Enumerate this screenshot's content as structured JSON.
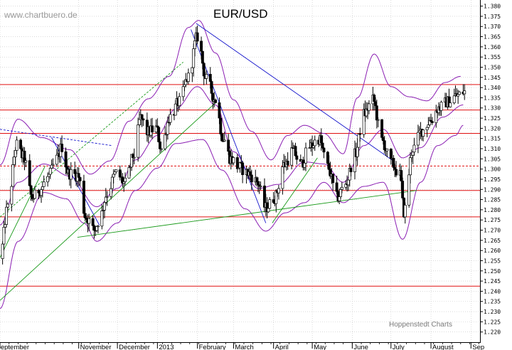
{
  "chart_data": {
    "type": "candlestick",
    "title": "EUR/USD",
    "watermark": "www.chartbuero.de",
    "credit": "Hoppenstedt Charts",
    "ylim": [
      1.215,
      1.383
    ],
    "y_ticks": [
      "1.220",
      "1.225",
      "1.230",
      "1.235",
      "1.240",
      "1.245",
      "1.250",
      "1.255",
      "1.260",
      "1.265",
      "1.270",
      "1.275",
      "1.280",
      "1.285",
      "1.290",
      "1.295",
      "1.300",
      "1.305",
      "1.310",
      "1.315",
      "1.320",
      "1.325",
      "1.330",
      "1.335",
      "1.340",
      "1.345",
      "1.350",
      "1.355",
      "1.360",
      "1.365",
      "1.370",
      "1.375",
      "1.380"
    ],
    "x_labels": [
      "September",
      "November",
      "December",
      "2013",
      "February",
      "March",
      "April",
      "May",
      "June",
      "July",
      "August",
      "Sep"
    ],
    "x_range": [
      "2012-09-01",
      "2013-09-08"
    ],
    "x_label_dates": [
      "2012-09-01",
      "2012-11-01",
      "2012-12-01",
      "2013-01-01",
      "2013-02-01",
      "2013-03-01",
      "2013-04-01",
      "2013-05-01",
      "2013-06-01",
      "2013-07-01",
      "2013-08-01",
      "2013-09-01"
    ],
    "horizontal_levels": [
      {
        "value": 1.3415,
        "style": "solid"
      },
      {
        "value": 1.329,
        "style": "solid"
      },
      {
        "value": 1.3175,
        "style": "solid"
      },
      {
        "value": 1.3015,
        "style": "dashed"
      },
      {
        "value": 1.2895,
        "style": "solid"
      },
      {
        "value": 1.2765,
        "style": "solid"
      },
      {
        "value": 1.2425,
        "style": "solid"
      }
    ],
    "trendlines": [
      {
        "color": "blue",
        "style": "solid",
        "from": [
          "2013-01-31",
          1.3715
        ],
        "to": [
          "2013-07-04",
          1.3035
        ]
      },
      {
        "color": "blue",
        "style": "solid",
        "from": [
          "2013-01-27",
          1.3685
        ],
        "to": [
          "2013-03-26",
          1.2735
        ]
      },
      {
        "color": "blue",
        "style": "solid",
        "from": [
          "2012-10-11",
          1.3155
        ],
        "to": [
          "2012-11-17",
          1.2725
        ]
      },
      {
        "color": "blue",
        "style": "dashed",
        "from": [
          "2012-09-01",
          1.3195
        ],
        "to": [
          "2012-11-27",
          1.3115
        ]
      },
      {
        "color": "green",
        "style": "solid",
        "from": [
          "2012-10-31",
          1.2665
        ],
        "to": [
          "2013-07-21",
          1.2895
        ]
      },
      {
        "color": "green",
        "style": "solid",
        "from": [
          "2012-09-01",
          1.2355
        ],
        "to": [
          "2013-02-15",
          1.3325
        ]
      },
      {
        "color": "green",
        "style": "solid",
        "from": [
          "2012-09-01",
          1.2565
        ],
        "to": [
          "2012-10-06",
          1.3015
        ]
      },
      {
        "color": "green",
        "style": "solid",
        "from": [
          "2013-03-31",
          1.2735
        ],
        "to": [
          "2013-05-05",
          1.3055
        ]
      },
      {
        "color": "green",
        "style": "dashed",
        "from": [
          "2012-09-01",
          1.2765
        ],
        "to": [
          "2013-01-21",
          1.3525
        ]
      }
    ],
    "bollinger_anchors": {
      "upper": [
        [
          "2012-09-01",
          1.302
        ],
        [
          "2012-09-15",
          1.3245
        ],
        [
          "2012-10-03",
          1.3155
        ],
        [
          "2012-10-25",
          1.3095
        ],
        [
          "2012-11-10",
          1.2975
        ],
        [
          "2012-11-25",
          1.304
        ],
        [
          "2012-12-10",
          1.3235
        ],
        [
          "2012-12-25",
          1.3345
        ],
        [
          "2013-01-10",
          1.3455
        ],
        [
          "2013-01-25",
          1.3695
        ],
        [
          "2013-02-02",
          1.373
        ],
        [
          "2013-02-15",
          1.357
        ],
        [
          "2013-03-01",
          1.334
        ],
        [
          "2013-03-15",
          1.3185
        ],
        [
          "2013-03-30",
          1.3045
        ],
        [
          "2013-04-12",
          1.3165
        ],
        [
          "2013-04-25",
          1.3215
        ],
        [
          "2013-05-10",
          1.3175
        ],
        [
          "2013-05-25",
          1.3075
        ],
        [
          "2013-06-05",
          1.335
        ],
        [
          "2013-06-18",
          1.3565
        ],
        [
          "2013-07-01",
          1.3405
        ],
        [
          "2013-07-15",
          1.3355
        ],
        [
          "2013-07-29",
          1.3335
        ],
        [
          "2013-08-12",
          1.3425
        ],
        [
          "2013-08-24",
          1.3455
        ]
      ],
      "lower": [
        [
          "2012-09-01",
          1.2315
        ],
        [
          "2012-09-15",
          1.2645
        ],
        [
          "2012-10-05",
          1.2885
        ],
        [
          "2012-10-22",
          1.2855
        ],
        [
          "2012-11-05",
          1.2735
        ],
        [
          "2012-11-15",
          1.2645
        ],
        [
          "2012-12-01",
          1.2735
        ],
        [
          "2012-12-15",
          1.2895
        ],
        [
          "2013-01-01",
          1.3005
        ],
        [
          "2013-01-15",
          1.3125
        ],
        [
          "2013-02-05",
          1.3145
        ],
        [
          "2013-02-20",
          1.2995
        ],
        [
          "2013-03-10",
          1.2805
        ],
        [
          "2013-03-26",
          1.2695
        ],
        [
          "2013-04-10",
          1.2785
        ],
        [
          "2013-04-25",
          1.2835
        ],
        [
          "2013-05-10",
          1.2935
        ],
        [
          "2013-05-25",
          1.2835
        ],
        [
          "2013-06-10",
          1.2915
        ],
        [
          "2013-06-25",
          1.2935
        ],
        [
          "2013-07-10",
          1.2655
        ],
        [
          "2013-07-24",
          1.2935
        ],
        [
          "2013-08-06",
          1.3115
        ],
        [
          "2013-08-20",
          1.3165
        ],
        [
          "2013-08-26",
          1.3215
        ]
      ],
      "middle": [
        [
          "2012-09-01",
          1.2725
        ],
        [
          "2012-09-15",
          1.2935
        ],
        [
          "2012-10-05",
          1.3025
        ],
        [
          "2012-10-25",
          1.2965
        ],
        [
          "2012-11-15",
          1.2815
        ],
        [
          "2012-12-01",
          1.2905
        ],
        [
          "2012-12-15",
          1.3045
        ],
        [
          "2013-01-01",
          1.3165
        ],
        [
          "2013-01-15",
          1.3295
        ],
        [
          "2013-02-01",
          1.3405
        ],
        [
          "2013-02-15",
          1.3315
        ],
        [
          "2013-03-01",
          1.3085
        ],
        [
          "2013-03-20",
          1.2905
        ],
        [
          "2013-04-05",
          1.2925
        ],
        [
          "2013-04-25",
          1.3035
        ],
        [
          "2013-05-10",
          1.3025
        ],
        [
          "2013-05-25",
          1.2935
        ],
        [
          "2013-06-10",
          1.3115
        ],
        [
          "2013-06-25",
          1.3195
        ],
        [
          "2013-07-10",
          1.3055
        ],
        [
          "2013-07-24",
          1.3105
        ],
        [
          "2013-08-10",
          1.3255
        ],
        [
          "2013-08-26",
          1.3315
        ]
      ]
    },
    "price_anchors": [
      [
        "2012-09-01",
        1.256
      ],
      [
        "2012-09-07",
        1.281
      ],
      [
        "2012-09-14",
        1.312
      ],
      [
        "2012-09-19",
        1.306
      ],
      [
        "2012-09-26",
        1.286
      ],
      [
        "2012-10-02",
        1.29
      ],
      [
        "2012-10-08",
        1.296
      ],
      [
        "2012-10-15",
        1.305
      ],
      [
        "2012-10-19",
        1.311
      ],
      [
        "2012-10-24",
        1.298
      ],
      [
        "2012-10-31",
        1.297
      ],
      [
        "2012-11-07",
        1.276
      ],
      [
        "2012-11-13",
        1.27
      ],
      [
        "2012-11-17",
        1.275
      ],
      [
        "2012-11-23",
        1.288
      ],
      [
        "2012-11-30",
        1.298
      ],
      [
        "2012-12-07",
        1.293
      ],
      [
        "2012-12-14",
        1.307
      ],
      [
        "2012-12-19",
        1.325
      ],
      [
        "2012-12-24",
        1.318
      ],
      [
        "2012-12-31",
        1.32
      ],
      [
        "2013-01-04",
        1.31
      ],
      [
        "2013-01-11",
        1.326
      ],
      [
        "2013-01-18",
        1.333
      ],
      [
        "2013-01-25",
        1.345
      ],
      [
        "2013-02-01",
        1.365
      ],
      [
        "2013-02-08",
        1.344
      ],
      [
        "2013-02-15",
        1.334
      ],
      [
        "2013-02-21",
        1.315
      ],
      [
        "2013-02-27",
        1.305
      ],
      [
        "2013-03-05",
        1.301
      ],
      [
        "2013-03-12",
        1.298
      ],
      [
        "2013-03-19",
        1.294
      ],
      [
        "2013-03-26",
        1.281
      ],
      [
        "2013-04-02",
        1.286
      ],
      [
        "2013-04-09",
        1.302
      ],
      [
        "2013-04-16",
        1.309
      ],
      [
        "2013-04-22",
        1.302
      ],
      [
        "2013-04-29",
        1.311
      ],
      [
        "2013-05-06",
        1.315
      ],
      [
        "2013-05-13",
        1.301
      ],
      [
        "2013-05-20",
        1.286
      ],
      [
        "2013-05-27",
        1.293
      ],
      [
        "2013-06-03",
        1.307
      ],
      [
        "2013-06-10",
        1.327
      ],
      [
        "2013-06-17",
        1.334
      ],
      [
        "2013-06-24",
        1.314
      ],
      [
        "2013-07-01",
        1.303
      ],
      [
        "2013-07-08",
        1.297
      ],
      [
        "2013-07-11",
        1.279
      ],
      [
        "2013-07-18",
        1.31
      ],
      [
        "2013-07-25",
        1.319
      ],
      [
        "2013-08-01",
        1.324
      ],
      [
        "2013-08-07",
        1.33
      ],
      [
        "2013-08-14",
        1.333
      ],
      [
        "2013-08-21",
        1.336
      ],
      [
        "2013-08-27",
        1.338
      ]
    ]
  }
}
